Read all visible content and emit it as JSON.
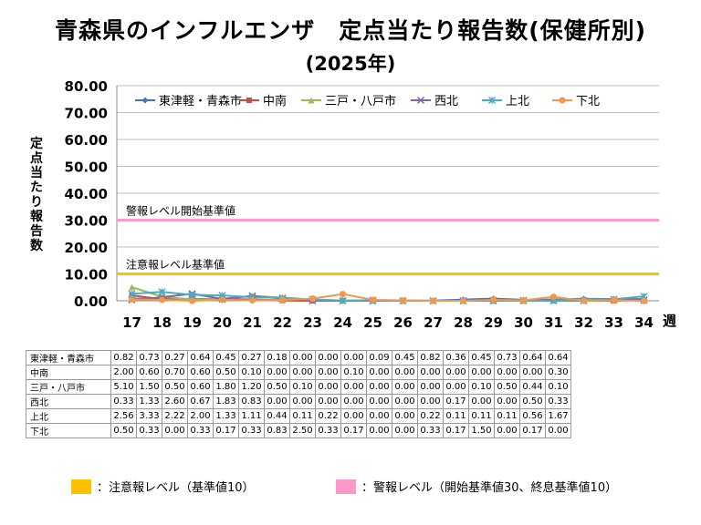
{
  "title": "青森県のインフルエンザ　定点当たり報告数(保健所別)",
  "subtitle": "(2025年)",
  "chart_data": {
    "type": "line",
    "ylabel": "定点当たり報告数",
    "xlabel": "週",
    "ylim": [
      0,
      80
    ],
    "yticks": [
      "0.00",
      "10.00",
      "20.00",
      "30.00",
      "40.00",
      "50.00",
      "60.00",
      "70.00",
      "80.00"
    ],
    "categories": [
      "17",
      "18",
      "19",
      "20",
      "21",
      "22",
      "23",
      "24",
      "25",
      "26",
      "27",
      "28",
      "29",
      "30",
      "31",
      "32",
      "33",
      "34"
    ],
    "legend_position": "top",
    "series": [
      {
        "name": "東津軽・青森市",
        "color": "#4472C4",
        "marker": "diamond",
        "values": [
          0.82,
          0.73,
          0.27,
          0.64,
          0.45,
          0.27,
          0.18,
          0.0,
          0.0,
          0.0,
          0.09,
          0.45,
          0.82,
          0.36,
          0.45,
          0.73,
          0.64,
          0.64
        ]
      },
      {
        "name": "中南",
        "color": "#C0504D",
        "marker": "square",
        "values": [
          2.0,
          0.6,
          0.7,
          0.6,
          0.5,
          0.1,
          0.0,
          0.0,
          0.0,
          0.1,
          0.0,
          0.0,
          0.0,
          0.0,
          0.0,
          0.0,
          0.0,
          0.3
        ]
      },
      {
        "name": "三戸・八戸市",
        "color": "#9BBB59",
        "marker": "triangle",
        "values": [
          5.1,
          1.5,
          0.5,
          0.6,
          1.8,
          1.2,
          0.5,
          0.1,
          0.0,
          0.0,
          0.0,
          0.0,
          0.0,
          0.0,
          0.1,
          0.5,
          0.44,
          0.1
        ]
      },
      {
        "name": "西北",
        "color": "#8064A2",
        "marker": "x",
        "values": [
          0.33,
          1.33,
          2.6,
          0.67,
          1.83,
          0.83,
          0.0,
          0.0,
          0.0,
          0.0,
          0.0,
          0.0,
          0.0,
          0.17,
          0.0,
          0.0,
          0.5,
          0.33
        ]
      },
      {
        "name": "上北",
        "color": "#4BACC6",
        "marker": "star",
        "values": [
          2.56,
          3.33,
          2.22,
          2.0,
          1.33,
          1.11,
          0.44,
          0.11,
          0.22,
          0.0,
          0.0,
          0.0,
          0.22,
          0.11,
          0.11,
          0.11,
          0.56,
          1.67
        ]
      },
      {
        "name": "下北",
        "color": "#F79646",
        "marker": "circle",
        "values": [
          0.5,
          0.33,
          0.0,
          0.33,
          0.17,
          0.33,
          0.83,
          2.5,
          0.33,
          0.17,
          0.0,
          0.0,
          0.33,
          0.17,
          1.5,
          0.0,
          0.17,
          0.0
        ]
      }
    ],
    "reference_lines": [
      {
        "label": "警報レベル開始基準値",
        "value": 30,
        "color": "#FF99CC"
      },
      {
        "label": "注意報レベル基準値",
        "value": 10,
        "color": "#FFC000"
      }
    ]
  },
  "legend_keys": [
    {
      "label": "：注意報レベル（基準値10）",
      "color": "#FFC000"
    },
    {
      "label": "：警報レベル（開始基準値30、終息基準値10）",
      "color": "#FF99CC"
    }
  ]
}
